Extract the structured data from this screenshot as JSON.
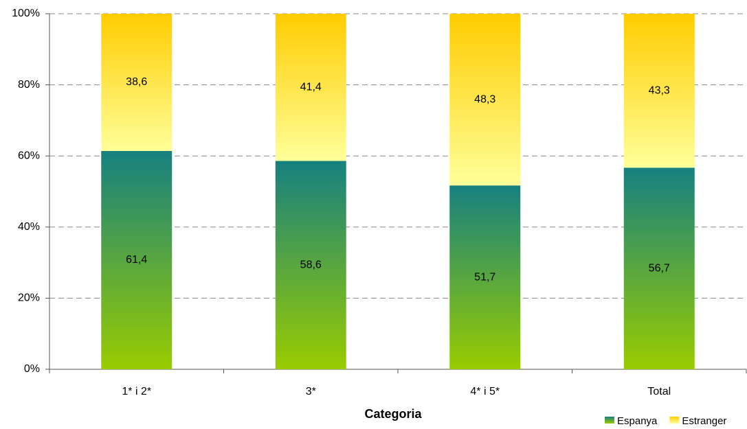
{
  "chart_data": {
    "type": "stacked-bar",
    "x_label": "Categoria",
    "categories": [
      "1* i 2*",
      "3*",
      "4* i 5*",
      "Total"
    ],
    "series": [
      {
        "name": "Espanya",
        "color": "#168080",
        "values": [
          61.4,
          58.6,
          51.7,
          56.7
        ],
        "value_labels": [
          "61,4",
          "58,6",
          "51,7",
          "56,7"
        ]
      },
      {
        "name": "Estranger",
        "color": "#ffcc00",
        "values": [
          38.6,
          41.4,
          48.3,
          43.3
        ],
        "value_labels": [
          "38,6",
          "41,4",
          "48,3",
          "43,3"
        ]
      }
    ],
    "ylim": [
      0,
      100
    ],
    "yticks": [
      {
        "value": 0,
        "label": "0%"
      },
      {
        "value": 20,
        "label": "20%"
      },
      {
        "value": 40,
        "label": "40%"
      },
      {
        "value": 60,
        "label": "60%"
      },
      {
        "value": 80,
        "label": "80%"
      },
      {
        "value": 100,
        "label": "100%"
      }
    ],
    "grid": true,
    "legend": "bottom-right"
  }
}
